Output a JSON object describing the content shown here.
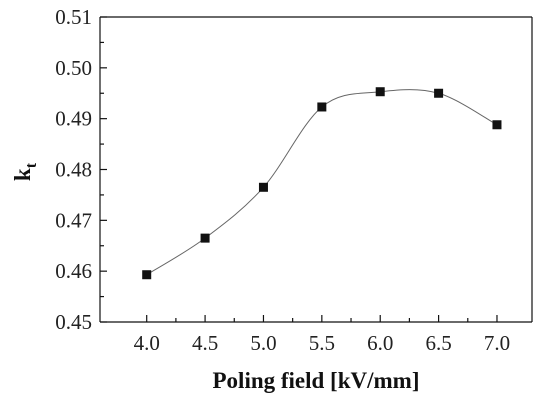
{
  "chart_data": {
    "type": "scatter",
    "xlabel": "Poling field [kV/mm]",
    "ylabel_main": "k",
    "ylabel_sub": "t",
    "x_ticks": [
      "4.0",
      "4.5",
      "5.0",
      "5.5",
      "6.0",
      "6.5",
      "7.0"
    ],
    "y_ticks": [
      "0.45",
      "0.46",
      "0.47",
      "0.48",
      "0.49",
      "0.50",
      "0.51"
    ],
    "xlim": [
      3.6,
      7.3
    ],
    "ylim": [
      0.45,
      0.51
    ],
    "series": [
      {
        "x": [
          4.0,
          4.5,
          5.0,
          5.5,
          6.0,
          6.5,
          7.0
        ],
        "y": [
          0.4593,
          0.4665,
          0.4765,
          0.4923,
          0.4953,
          0.495,
          0.4888
        ]
      }
    ],
    "grid": false,
    "marker": "square",
    "line_style": "smooth"
  }
}
